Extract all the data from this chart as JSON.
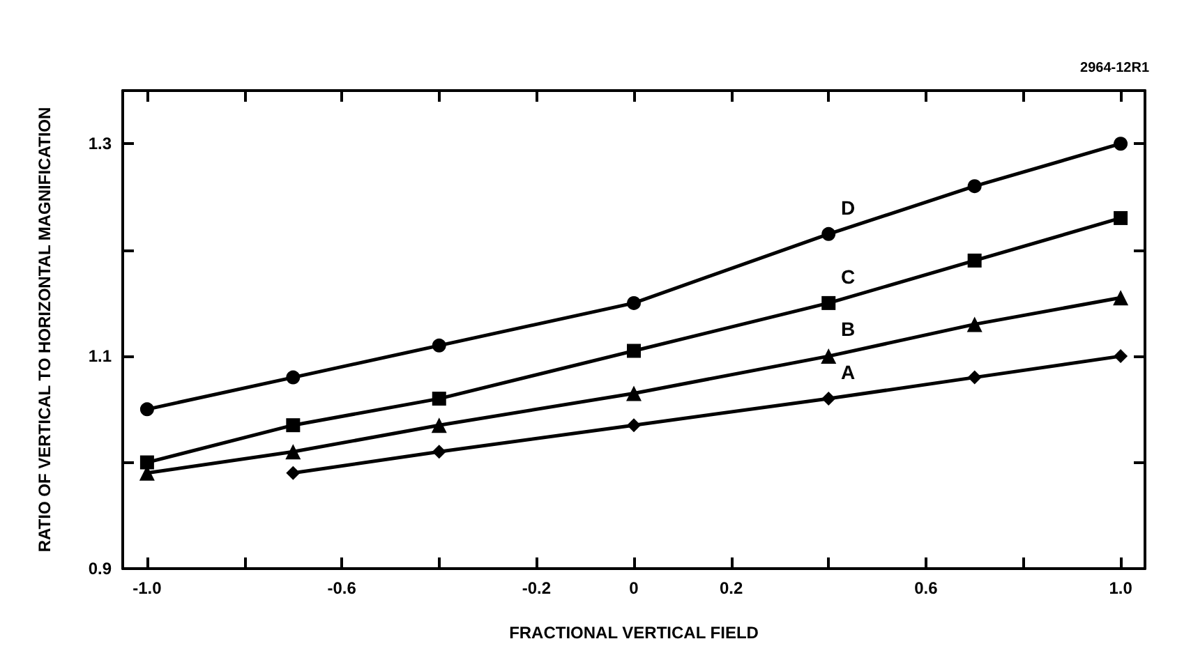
{
  "chart_data": {
    "type": "line",
    "xlabel": "FRACTIONAL VERTICAL FIELD",
    "ylabel": "RATIO OF VERTICAL TO HORIZONTAL MAGNIFICATION",
    "annotations": [
      "2964-12R1"
    ],
    "x": [
      -1.0,
      -0.7,
      -0.4,
      0,
      0.4,
      0.7,
      1.0
    ],
    "series": [
      {
        "name": "D",
        "color": "#000000",
        "marker": "circle",
        "values": [
          1.05,
          1.08,
          1.11,
          1.15,
          1.215,
          1.26,
          1.3
        ]
      },
      {
        "name": "C",
        "color": "#000000",
        "marker": "square",
        "values": [
          1.0,
          1.035,
          1.06,
          1.105,
          1.15,
          1.19,
          1.23
        ]
      },
      {
        "name": "B",
        "color": "#000000",
        "marker": "triangle",
        "values": [
          0.99,
          1.01,
          1.035,
          1.065,
          1.1,
          1.13,
          1.155
        ]
      },
      {
        "name": "A",
        "color": "#000000",
        "marker": "diamond",
        "values": [
          null,
          0.99,
          1.01,
          1.035,
          1.06,
          1.08,
          1.1
        ]
      }
    ],
    "xlim": [
      -1.05,
      1.05
    ],
    "xticks": [
      {
        "value": -1.0,
        "label": "-1.0"
      },
      {
        "value": -0.8,
        "label": null
      },
      -0.6,
      {
        "value": -0.4,
        "label": null
      },
      -0.2,
      0,
      0.2,
      {
        "value": 0.4,
        "label": null
      },
      0.6,
      {
        "value": 0.8,
        "label": null
      },
      {
        "value": 1.0,
        "label": "1.0"
      }
    ],
    "ylim": [
      0.9,
      1.35
    ],
    "yticks": [
      0.9,
      {
        "value": 1.0,
        "label": null
      },
      1.1,
      {
        "value": 1.2,
        "label": null
      },
      1.3
    ],
    "grid": false,
    "legend": false,
    "line_style": "solid"
  }
}
